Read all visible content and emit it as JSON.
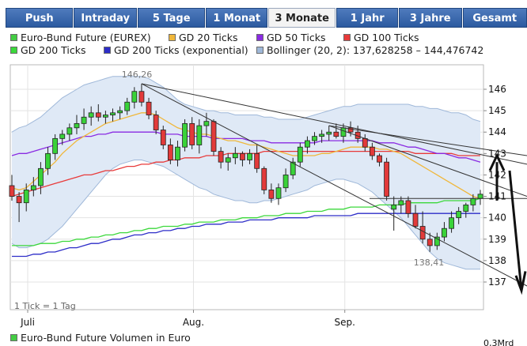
{
  "tabs": [
    {
      "label": "Push",
      "active": false
    },
    {
      "label": "Intraday",
      "active": false
    },
    {
      "label": "5 Tage",
      "active": false
    },
    {
      "label": "1 Monat",
      "active": false
    },
    {
      "label": "3 Monate",
      "active": true
    },
    {
      "label": "1 Jahr",
      "active": false
    },
    {
      "label": "3 Jahre",
      "active": false
    },
    {
      "label": "Gesamt",
      "active": false
    }
  ],
  "legend": [
    {
      "label": "Euro-Bund Future (EUREX)",
      "color": "#44cc44"
    },
    {
      "label": "GD 20 Ticks",
      "color": "#f0b73a"
    },
    {
      "label": "GD 50 Ticks",
      "color": "#8a2be2"
    },
    {
      "label": "GD 100 Ticks",
      "color": "#e83a3a"
    },
    {
      "label": "GD 200 Ticks",
      "color": "#3bd83b"
    },
    {
      "label": "GD 200 Ticks (exponential)",
      "color": "#2d2dc8"
    },
    {
      "label": "Bollinger (20, 2): 137,628258 – 144,476742",
      "color": "#9fb8d9"
    }
  ],
  "volume_legend": "Euro-Bund Future Volumen in Euro",
  "volume_partial_label": "0,3Mrd",
  "chart_data": {
    "type": "candlestick",
    "y_range": [
      136.5,
      147
    ],
    "y_ticks": [
      "146",
      "145",
      "144",
      "143",
      "142",
      "141",
      "140",
      "139",
      "138",
      "137"
    ],
    "x_labels": [
      "Juli",
      "Aug.",
      "Sep."
    ],
    "tick_note": "1 Tick = 1 Tag",
    "annotations": {
      "high": "146,26",
      "low": "138,41"
    },
    "candles": [
      {
        "o": 141.5,
        "h": 142.0,
        "l": 140.8,
        "c": 141.0
      },
      {
        "o": 141.0,
        "h": 141.2,
        "l": 139.8,
        "c": 140.7
      },
      {
        "o": 140.7,
        "h": 141.6,
        "l": 140.3,
        "c": 141.3
      },
      {
        "o": 141.3,
        "h": 141.9,
        "l": 141.0,
        "c": 141.5
      },
      {
        "o": 141.5,
        "h": 142.6,
        "l": 141.1,
        "c": 142.3
      },
      {
        "o": 142.3,
        "h": 143.3,
        "l": 142.0,
        "c": 143.0
      },
      {
        "o": 143.0,
        "h": 143.9,
        "l": 142.7,
        "c": 143.7
      },
      {
        "o": 143.7,
        "h": 144.1,
        "l": 143.4,
        "c": 143.9
      },
      {
        "o": 143.9,
        "h": 144.4,
        "l": 143.6,
        "c": 144.2
      },
      {
        "o": 144.2,
        "h": 144.8,
        "l": 143.9,
        "c": 144.4
      },
      {
        "o": 144.4,
        "h": 145.1,
        "l": 144.1,
        "c": 144.7
      },
      {
        "o": 144.7,
        "h": 145.2,
        "l": 144.3,
        "c": 144.9
      },
      {
        "o": 144.9,
        "h": 145.3,
        "l": 144.5,
        "c": 144.7
      },
      {
        "o": 144.7,
        "h": 145.0,
        "l": 144.4,
        "c": 144.8
      },
      {
        "o": 144.8,
        "h": 145.1,
        "l": 144.5,
        "c": 144.9
      },
      {
        "o": 144.9,
        "h": 145.2,
        "l": 144.6,
        "c": 145.0
      },
      {
        "o": 145.0,
        "h": 145.6,
        "l": 144.8,
        "c": 145.4
      },
      {
        "o": 145.4,
        "h": 146.1,
        "l": 145.1,
        "c": 145.9
      },
      {
        "o": 145.9,
        "h": 146.26,
        "l": 145.2,
        "c": 145.4
      },
      {
        "o": 145.4,
        "h": 145.6,
        "l": 144.6,
        "c": 144.8
      },
      {
        "o": 144.8,
        "h": 145.0,
        "l": 143.9,
        "c": 144.1
      },
      {
        "o": 144.1,
        "h": 144.3,
        "l": 143.2,
        "c": 143.4
      },
      {
        "o": 143.4,
        "h": 143.7,
        "l": 142.5,
        "c": 142.7
      },
      {
        "o": 142.7,
        "h": 143.6,
        "l": 142.4,
        "c": 143.3
      },
      {
        "o": 143.3,
        "h": 144.6,
        "l": 143.1,
        "c": 144.4
      },
      {
        "o": 144.4,
        "h": 144.7,
        "l": 143.2,
        "c": 143.4
      },
      {
        "o": 143.4,
        "h": 144.6,
        "l": 143.0,
        "c": 144.3
      },
      {
        "o": 144.3,
        "h": 144.9,
        "l": 143.8,
        "c": 144.5
      },
      {
        "o": 144.5,
        "h": 144.6,
        "l": 142.9,
        "c": 143.1
      },
      {
        "o": 143.1,
        "h": 143.3,
        "l": 142.3,
        "c": 142.6
      },
      {
        "o": 142.6,
        "h": 143.0,
        "l": 142.2,
        "c": 142.8
      },
      {
        "o": 142.8,
        "h": 143.3,
        "l": 142.5,
        "c": 143.0
      },
      {
        "o": 143.0,
        "h": 143.1,
        "l": 142.4,
        "c": 142.7
      },
      {
        "o": 142.7,
        "h": 143.2,
        "l": 142.5,
        "c": 143.0
      },
      {
        "o": 143.0,
        "h": 143.4,
        "l": 142.1,
        "c": 142.3
      },
      {
        "o": 142.3,
        "h": 142.4,
        "l": 141.1,
        "c": 141.3
      },
      {
        "o": 141.3,
        "h": 141.6,
        "l": 140.7,
        "c": 140.9
      },
      {
        "o": 140.9,
        "h": 141.6,
        "l": 140.6,
        "c": 141.4
      },
      {
        "o": 141.4,
        "h": 142.3,
        "l": 141.2,
        "c": 142.0
      },
      {
        "o": 142.0,
        "h": 142.8,
        "l": 141.8,
        "c": 142.6
      },
      {
        "o": 142.6,
        "h": 143.5,
        "l": 142.4,
        "c": 143.3
      },
      {
        "o": 143.3,
        "h": 143.8,
        "l": 143.0,
        "c": 143.6
      },
      {
        "o": 143.6,
        "h": 144.0,
        "l": 143.4,
        "c": 143.8
      },
      {
        "o": 143.8,
        "h": 144.1,
        "l": 143.5,
        "c": 143.9
      },
      {
        "o": 143.9,
        "h": 144.3,
        "l": 143.6,
        "c": 144.0
      },
      {
        "o": 144.0,
        "h": 144.4,
        "l": 143.7,
        "c": 143.8
      },
      {
        "o": 143.8,
        "h": 144.4,
        "l": 143.5,
        "c": 144.2
      },
      {
        "o": 144.2,
        "h": 144.5,
        "l": 143.8,
        "c": 144.0
      },
      {
        "o": 144.0,
        "h": 144.3,
        "l": 143.5,
        "c": 143.7
      },
      {
        "o": 143.7,
        "h": 143.9,
        "l": 143.1,
        "c": 143.3
      },
      {
        "o": 143.3,
        "h": 143.5,
        "l": 142.7,
        "c": 142.9
      },
      {
        "o": 142.9,
        "h": 143.0,
        "l": 142.4,
        "c": 142.6
      },
      {
        "o": 142.6,
        "h": 142.8,
        "l": 140.8,
        "c": 141.0
      },
      {
        "o": 140.4,
        "h": 141.0,
        "l": 139.4,
        "c": 140.6
      },
      {
        "o": 140.6,
        "h": 141.0,
        "l": 140.2,
        "c": 140.8
      },
      {
        "o": 140.8,
        "h": 141.0,
        "l": 140.0,
        "c": 140.2
      },
      {
        "o": 140.2,
        "h": 140.6,
        "l": 139.5,
        "c": 139.6
      },
      {
        "o": 139.6,
        "h": 140.3,
        "l": 138.8,
        "c": 139.0
      },
      {
        "o": 139.0,
        "h": 139.3,
        "l": 138.41,
        "c": 138.7
      },
      {
        "o": 138.7,
        "h": 139.3,
        "l": 138.5,
        "c": 139.1
      },
      {
        "o": 139.1,
        "h": 139.8,
        "l": 138.9,
        "c": 139.5
      },
      {
        "o": 139.5,
        "h": 140.3,
        "l": 139.3,
        "c": 140.0
      },
      {
        "o": 140.0,
        "h": 140.5,
        "l": 139.7,
        "c": 140.3
      },
      {
        "o": 140.3,
        "h": 140.7,
        "l": 140.0,
        "c": 140.6
      },
      {
        "o": 140.6,
        "h": 141.1,
        "l": 140.3,
        "c": 140.9
      },
      {
        "o": 140.9,
        "h": 141.3,
        "l": 140.6,
        "c": 141.1
      }
    ],
    "ma20": [
      141.4,
      141.3,
      141.4,
      141.7,
      142.0,
      142.3,
      142.6,
      143.0,
      143.3,
      143.6,
      143.8,
      144.0,
      144.2,
      144.4,
      144.5,
      144.6,
      144.7,
      144.8,
      144.9,
      144.9,
      144.8,
      144.6,
      144.4,
      144.2,
      144.1,
      144.0,
      143.9,
      143.9,
      143.8,
      143.7,
      143.6,
      143.6,
      143.5,
      143.4,
      143.4,
      143.3,
      143.2,
      143.1,
      143.0,
      142.9,
      142.9,
      142.9,
      142.9,
      143.0,
      143.0,
      143.1,
      143.2,
      143.3,
      143.3,
      143.3,
      143.3,
      143.2,
      143.2,
      143.1,
      143.0,
      142.8,
      142.6,
      142.4,
      142.2,
      142.0,
      141.8,
      141.6,
      141.4,
      141.2,
      141.0,
      140.9
    ],
    "ma50": [
      142.9,
      143.0,
      143.0,
      143.1,
      143.2,
      143.3,
      143.4,
      143.5,
      143.6,
      143.7,
      143.8,
      143.8,
      143.9,
      143.9,
      144.0,
      144.0,
      144.0,
      144.0,
      144.0,
      144.0,
      144.0,
      143.9,
      143.9,
      143.9,
      143.8,
      143.8,
      143.8,
      143.8,
      143.7,
      143.7,
      143.7,
      143.7,
      143.7,
      143.6,
      143.6,
      143.6,
      143.5,
      143.5,
      143.5,
      143.5,
      143.5,
      143.5,
      143.5,
      143.6,
      143.6,
      143.6,
      143.6,
      143.6,
      143.6,
      143.6,
      143.6,
      143.5,
      143.5,
      143.5,
      143.4,
      143.3,
      143.3,
      143.2,
      143.1,
      143.0,
      143.0,
      142.9,
      142.8,
      142.8,
      142.7,
      142.6
    ],
    "ma100": [
      141.0,
      141.1,
      141.2,
      141.3,
      141.4,
      141.5,
      141.6,
      141.7,
      141.8,
      141.9,
      142.0,
      142.0,
      142.1,
      142.2,
      142.2,
      142.3,
      142.4,
      142.4,
      142.5,
      142.5,
      142.6,
      142.6,
      142.7,
      142.7,
      142.8,
      142.8,
      142.8,
      142.9,
      142.9,
      142.9,
      143.0,
      143.0,
      143.0,
      143.0,
      143.0,
      143.1,
      143.1,
      143.1,
      143.1,
      143.1,
      143.1,
      143.1,
      143.1,
      143.1,
      143.1,
      143.1,
      143.1,
      143.1,
      143.1,
      143.1,
      143.1,
      143.1,
      143.1,
      143.1,
      143.1,
      143.1,
      143.0,
      143.0,
      143.0,
      143.0,
      143.0,
      143.0,
      142.9,
      142.9,
      142.9,
      142.9
    ],
    "ma200": [
      138.7,
      138.7,
      138.7,
      138.7,
      138.8,
      138.8,
      138.8,
      138.9,
      138.9,
      139.0,
      139.0,
      139.1,
      139.1,
      139.2,
      139.2,
      139.3,
      139.3,
      139.4,
      139.4,
      139.5,
      139.5,
      139.6,
      139.6,
      139.6,
      139.7,
      139.7,
      139.8,
      139.8,
      139.8,
      139.9,
      139.9,
      139.9,
      140.0,
      140.0,
      140.0,
      140.1,
      140.1,
      140.1,
      140.2,
      140.2,
      140.2,
      140.3,
      140.3,
      140.3,
      140.4,
      140.4,
      140.4,
      140.5,
      140.5,
      140.5,
      140.5,
      140.6,
      140.6,
      140.6,
      140.6,
      140.7,
      140.7,
      140.7,
      140.7,
      140.7,
      140.8,
      140.8,
      140.8,
      140.8,
      140.8,
      140.9
    ],
    "ema200": [
      138.2,
      138.2,
      138.2,
      138.3,
      138.3,
      138.4,
      138.4,
      138.5,
      138.6,
      138.6,
      138.7,
      138.8,
      138.8,
      138.9,
      139.0,
      139.0,
      139.1,
      139.2,
      139.2,
      139.3,
      139.3,
      139.4,
      139.4,
      139.5,
      139.5,
      139.6,
      139.6,
      139.7,
      139.7,
      139.7,
      139.8,
      139.8,
      139.8,
      139.9,
      139.9,
      139.9,
      139.9,
      140.0,
      140.0,
      140.0,
      140.0,
      140.0,
      140.1,
      140.1,
      140.1,
      140.1,
      140.1,
      140.1,
      140.2,
      140.2,
      140.2,
      140.2,
      140.2,
      140.2,
      140.2,
      140.2,
      140.2,
      140.2,
      140.2,
      140.2,
      140.2,
      140.2,
      140.2,
      140.2,
      140.2,
      140.2
    ],
    "bollinger_upper": [
      144.0,
      144.2,
      144.3,
      144.5,
      144.7,
      145.0,
      145.3,
      145.6,
      145.8,
      146.0,
      146.2,
      146.3,
      146.4,
      146.5,
      146.6,
      146.6,
      146.6,
      146.6,
      146.6,
      146.5,
      146.3,
      146.1,
      145.8,
      145.5,
      145.3,
      145.2,
      145.1,
      145.0,
      145.0,
      144.9,
      144.9,
      144.8,
      144.8,
      144.8,
      144.8,
      144.7,
      144.7,
      144.6,
      144.6,
      144.6,
      144.6,
      144.7,
      144.8,
      144.9,
      145.0,
      145.1,
      145.2,
      145.2,
      145.3,
      145.3,
      145.3,
      145.3,
      145.3,
      145.3,
      145.3,
      145.3,
      145.2,
      145.2,
      145.1,
      145.1,
      145.0,
      144.9,
      144.9,
      144.8,
      144.6,
      144.5
    ],
    "bollinger_lower": [
      138.8,
      138.6,
      138.6,
      138.7,
      138.8,
      139.0,
      139.3,
      139.6,
      140.0,
      140.4,
      140.8,
      141.2,
      141.6,
      142.0,
      142.3,
      142.5,
      142.6,
      142.7,
      142.7,
      142.6,
      142.5,
      142.4,
      142.2,
      142.0,
      141.8,
      141.6,
      141.4,
      141.3,
      141.1,
      141.0,
      140.9,
      140.8,
      140.8,
      140.7,
      140.7,
      140.8,
      140.8,
      140.9,
      141.0,
      141.1,
      141.2,
      141.3,
      141.5,
      141.6,
      141.7,
      141.8,
      141.8,
      141.7,
      141.6,
      141.4,
      141.2,
      140.9,
      140.6,
      140.3,
      140.0,
      139.6,
      139.2,
      138.8,
      138.4,
      138.1,
      137.9,
      137.8,
      137.7,
      137.6,
      137.6,
      137.6
    ]
  }
}
